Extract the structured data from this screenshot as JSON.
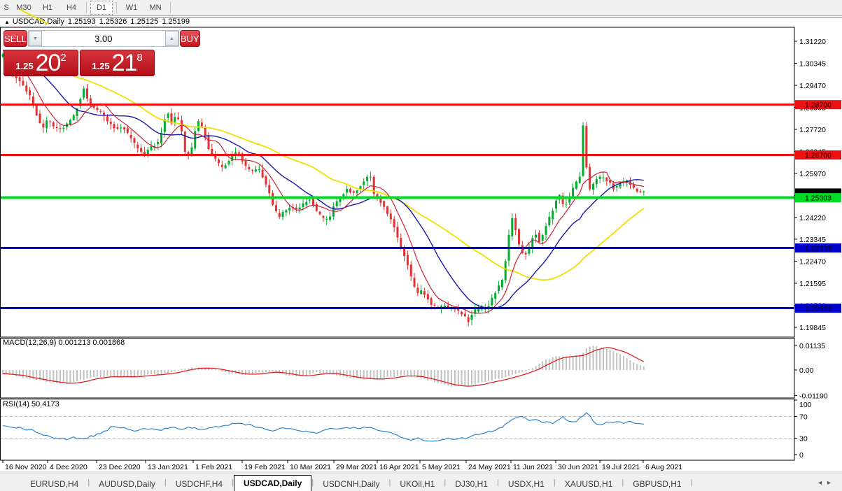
{
  "toolbar": {
    "buttons": [
      {
        "label": "S",
        "active": false
      },
      {
        "label": "M30",
        "active": false
      },
      {
        "label": "H1",
        "active": false
      },
      {
        "label": "H4",
        "active": false
      },
      {
        "label": "D1",
        "active": true
      },
      {
        "label": "W1",
        "active": false
      },
      {
        "label": "MN",
        "active": false
      }
    ]
  },
  "header": {
    "collapse_glyph": "▲",
    "symbol": "USDCAD,Daily",
    "open": "1.25193",
    "high": "1.25326",
    "low": "1.25125",
    "close": "1.25199"
  },
  "trade_panel": {
    "sell_label": "SELL",
    "buy_label": "BUY",
    "volume": "3.00",
    "spinner_down_glyph": "▼",
    "spinner_up_glyph": "▲",
    "sell_price": {
      "prefix": "1.25",
      "big": "20",
      "sup": "2"
    },
    "buy_price": {
      "prefix": "1.25",
      "big": "21",
      "sup": "8"
    }
  },
  "tabs": {
    "items": [
      {
        "label": "EURUSD,H4",
        "active": false
      },
      {
        "label": "AUDUSD,Daily",
        "active": false
      },
      {
        "label": "USDCHF,H4",
        "active": false
      },
      {
        "label": "USDCAD,Daily",
        "active": true
      },
      {
        "label": "USDCNH,Daily",
        "active": false
      },
      {
        "label": "UKOil,H1",
        "active": false
      },
      {
        "label": "DJ30,H1",
        "active": false
      },
      {
        "label": "USDX,H1",
        "active": false
      },
      {
        "label": "XAUUSD,H1",
        "active": false
      },
      {
        "label": "GBPUSD,H1",
        "active": false
      }
    ],
    "scroll_left": "◂",
    "scroll_right": "▸"
  },
  "chart_data": {
    "type": "candlestick",
    "symbol": "USDCAD",
    "timeframe": "Daily",
    "ohlc": {
      "open": 1.25193,
      "high": 1.25326,
      "low": 1.25125,
      "close": 1.25199
    },
    "candle_colors": {
      "up": "#00ad2f",
      "down": "#e43030"
    },
    "y_axis": {
      "top_price": 1.3122,
      "step": 0.00875,
      "ticks": [
        "1.31220",
        "1.30345",
        "1.29470",
        "1.28595",
        "1.27720",
        "1.26845",
        "1.25970",
        "1.25095",
        "1.24220",
        "1.23345",
        "1.22470",
        "1.21595",
        "1.20720",
        "1.19845"
      ]
    },
    "x_axis": {
      "dates": [
        [
          4,
          "16 Nov 2020"
        ],
        [
          68,
          "4 Dec 2020"
        ],
        [
          138,
          "23 Dec 2020"
        ],
        [
          208,
          "13 Jan 2021"
        ],
        [
          276,
          "1 Feb 2021"
        ],
        [
          346,
          "19 Feb 2021"
        ],
        [
          411,
          "10 Mar 2021"
        ],
        [
          477,
          "29 Mar 2021"
        ],
        [
          539,
          "16 Apr 2021"
        ],
        [
          600,
          "5 May 2021"
        ],
        [
          666,
          "24 May 2021"
        ],
        [
          730,
          "11 Jun 2021"
        ],
        [
          794,
          "30 Jun 2021"
        ],
        [
          857,
          "19 Jul 2021"
        ],
        [
          919,
          "6 Aug 2021"
        ]
      ]
    },
    "levels": [
      {
        "price": 1.287,
        "label": "1.28700",
        "color": "#ee1111",
        "thickness": 3,
        "text_color": "#ffffff"
      },
      {
        "price": 1.267,
        "label": "1.26700",
        "color": "#ee1111",
        "thickness": 3,
        "text_color": "#ffffff"
      },
      {
        "price": 1.23003,
        "label": "1.23003",
        "color": "#0000cc",
        "thickness": 3,
        "text_color": "#ffffff"
      },
      {
        "price": 1.20609,
        "label": "1.20609",
        "color": "#0000cc",
        "thickness": 3,
        "text_color": "#ffffff"
      }
    ],
    "green_level": {
      "price": 1.25003,
      "label": "1.25003",
      "color": "#00dd26",
      "thickness": 4,
      "text_color": "#ffffff"
    },
    "current_price": {
      "price": 1.25188,
      "label": "1.25188",
      "bg": "#000000",
      "text_color": "#ffffff"
    },
    "moving_averages": [
      {
        "name": "slow",
        "window": 45,
        "color": "#f0e000",
        "width": 1.8
      },
      {
        "name": "medium",
        "window": 20,
        "color": "#1a1aa6",
        "width": 1.4
      },
      {
        "name": "fast",
        "window": 8,
        "color": "#cc2233",
        "width": 1.2
      }
    ],
    "price_path": [
      [
        3,
        1.306
      ],
      [
        10,
        1.3075
      ],
      [
        18,
        1.302
      ],
      [
        28,
        1.2975
      ],
      [
        38,
        1.2945
      ],
      [
        48,
        1.29
      ],
      [
        57,
        1.283
      ],
      [
        65,
        1.277
      ],
      [
        73,
        1.281
      ],
      [
        82,
        1.278
      ],
      [
        92,
        1.2768
      ],
      [
        102,
        1.2796
      ],
      [
        112,
        1.2836
      ],
      [
        120,
        1.29
      ],
      [
        124,
        1.2936
      ],
      [
        131,
        1.2878
      ],
      [
        140,
        1.2852
      ],
      [
        150,
        1.2836
      ],
      [
        160,
        1.2798
      ],
      [
        170,
        1.277
      ],
      [
        180,
        1.2784
      ],
      [
        190,
        1.2742
      ],
      [
        200,
        1.27
      ],
      [
        210,
        1.2672
      ],
      [
        220,
        1.27
      ],
      [
        230,
        1.2714
      ],
      [
        238,
        1.278
      ],
      [
        243,
        1.2856
      ],
      [
        250,
        1.2798
      ],
      [
        257,
        1.2836
      ],
      [
        264,
        1.277
      ],
      [
        271,
        1.265
      ],
      [
        279,
        1.27
      ],
      [
        287,
        1.281
      ],
      [
        295,
        1.277
      ],
      [
        304,
        1.2686
      ],
      [
        314,
        1.2645
      ],
      [
        324,
        1.2616
      ],
      [
        334,
        1.2658
      ],
      [
        344,
        1.2686
      ],
      [
        354,
        1.263
      ],
      [
        364,
        1.2602
      ],
      [
        374,
        1.2616
      ],
      [
        384,
        1.256
      ],
      [
        394,
        1.2478
      ],
      [
        403,
        1.242
      ],
      [
        412,
        1.245
      ],
      [
        421,
        1.2464
      ],
      [
        430,
        1.245
      ],
      [
        439,
        1.2478
      ],
      [
        448,
        1.2498
      ],
      [
        456,
        1.245
      ],
      [
        465,
        1.242
      ],
      [
        474,
        1.2408
      ],
      [
        483,
        1.2478
      ],
      [
        492,
        1.2505
      ],
      [
        501,
        1.2533
      ],
      [
        510,
        1.252
      ],
      [
        519,
        1.2546
      ],
      [
        528,
        1.257
      ],
      [
        533,
        1.26
      ],
      [
        538,
        1.252
      ],
      [
        546,
        1.2492
      ],
      [
        554,
        1.2464
      ],
      [
        562,
        1.242
      ],
      [
        570,
        1.2366
      ],
      [
        578,
        1.2296
      ],
      [
        585,
        1.2255
      ],
      [
        592,
        1.2186
      ],
      [
        600,
        1.2116
      ],
      [
        608,
        1.213
      ],
      [
        615,
        1.2102
      ],
      [
        622,
        1.2074
      ],
      [
        630,
        1.206
      ],
      [
        638,
        1.2074
      ],
      [
        645,
        1.206
      ],
      [
        652,
        1.2066
      ],
      [
        660,
        1.2046
      ],
      [
        668,
        1.2032
      ],
      [
        674,
        1.201
      ],
      [
        680,
        1.2046
      ],
      [
        688,
        1.206
      ],
      [
        696,
        1.2054
      ],
      [
        703,
        1.2074
      ],
      [
        710,
        1.2116
      ],
      [
        717,
        1.2144
      ],
      [
        724,
        1.2186
      ],
      [
        731,
        1.234
      ],
      [
        737,
        1.242
      ],
      [
        742,
        1.2366
      ],
      [
        748,
        1.2296
      ],
      [
        755,
        1.227
      ],
      [
        762,
        1.231
      ],
      [
        769,
        1.2366
      ],
      [
        776,
        1.2324
      ],
      [
        783,
        1.238
      ],
      [
        790,
        1.2422
      ],
      [
        797,
        1.247
      ],
      [
        803,
        1.252
      ],
      [
        809,
        1.2478
      ],
      [
        816,
        1.2478
      ],
      [
        822,
        1.2534
      ],
      [
        828,
        1.256
      ],
      [
        833,
        1.2585
      ],
      [
        838,
        1.2795
      ],
      [
        842,
        1.264
      ],
      [
        847,
        1.253
      ],
      [
        853,
        1.256
      ],
      [
        859,
        1.2576
      ],
      [
        865,
        1.2584
      ],
      [
        871,
        1.2568
      ],
      [
        877,
        1.2556
      ],
      [
        883,
        1.2528
      ],
      [
        889,
        1.2556
      ],
      [
        895,
        1.2568
      ],
      [
        901,
        1.2568
      ],
      [
        907,
        1.2548
      ],
      [
        913,
        1.2528
      ],
      [
        919,
        1.252
      ],
      [
        924,
        1.252
      ]
    ],
    "macd_panel": {
      "label": "MACD(12,26,9) 0.001213 0.001868",
      "main_value": 0.001213,
      "signal_value": 0.001868,
      "ticks": [
        {
          "v": 0.01135,
          "label": "0.01135"
        },
        {
          "v": 0,
          "label": "0.00"
        },
        {
          "v": -0.0119,
          "label": "-0.01190"
        }
      ],
      "histogram_color": "#c2c2c2",
      "signal_color": "#e02020",
      "anchors": [
        [
          4,
          -0.0015
        ],
        [
          40,
          -0.004
        ],
        [
          80,
          -0.006
        ],
        [
          100,
          -0.0062
        ],
        [
          130,
          -0.0035
        ],
        [
          155,
          -0.003
        ],
        [
          175,
          -0.0035
        ],
        [
          205,
          -0.0025
        ],
        [
          235,
          -0.0018
        ],
        [
          262,
          0.0006
        ],
        [
          285,
          0.0012
        ],
        [
          305,
          0.0002
        ],
        [
          330,
          -0.0018
        ],
        [
          355,
          -0.0022
        ],
        [
          375,
          -0.001
        ],
        [
          392,
          -0.0008
        ],
        [
          412,
          -0.0026
        ],
        [
          432,
          -0.0028
        ],
        [
          452,
          -0.0012
        ],
        [
          472,
          -0.0016
        ],
        [
          492,
          -0.0034
        ],
        [
          515,
          -0.004
        ],
        [
          540,
          -0.0045
        ],
        [
          560,
          -0.003
        ],
        [
          580,
          -0.0024
        ],
        [
          600,
          -0.0036
        ],
        [
          620,
          -0.0055
        ],
        [
          640,
          -0.0074
        ],
        [
          660,
          -0.0078
        ],
        [
          680,
          -0.0064
        ],
        [
          700,
          -0.005
        ],
        [
          720,
          -0.0034
        ],
        [
          740,
          -0.0016
        ],
        [
          758,
          0.0004
        ],
        [
          775,
          0.004
        ],
        [
          790,
          0.006
        ],
        [
          800,
          0.0064
        ],
        [
          812,
          0.006
        ],
        [
          822,
          0.0064
        ],
        [
          832,
          0.008
        ],
        [
          840,
          0.0105
        ],
        [
          848,
          0.0114
        ],
        [
          856,
          0.01
        ],
        [
          866,
          0.0096
        ],
        [
          876,
          0.009
        ],
        [
          886,
          0.0074
        ],
        [
          896,
          0.0054
        ],
        [
          906,
          0.0034
        ],
        [
          916,
          0.002
        ],
        [
          924,
          0.0012
        ]
      ]
    },
    "rsi_panel": {
      "label": "RSI(14) 50.4173",
      "value": 50.4173,
      "ticks": [
        {
          "v": 100,
          "label": "100"
        },
        {
          "v": 70,
          "label": "70"
        },
        {
          "v": 30,
          "label": "30"
        },
        {
          "v": 0,
          "label": "0"
        }
      ],
      "dashed_levels": [
        70,
        30
      ],
      "line_color": "#2e86d0",
      "anchors": [
        [
          4,
          52
        ],
        [
          20,
          50
        ],
        [
          40,
          46
        ],
        [
          60,
          38
        ],
        [
          80,
          30
        ],
        [
          95,
          27
        ],
        [
          105,
          31
        ],
        [
          118,
          29
        ],
        [
          132,
          34
        ],
        [
          148,
          42
        ],
        [
          162,
          52
        ],
        [
          178,
          49
        ],
        [
          192,
          45
        ],
        [
          212,
          47
        ],
        [
          228,
          44
        ],
        [
          244,
          52
        ],
        [
          258,
          47
        ],
        [
          272,
          50
        ],
        [
          288,
          46
        ],
        [
          302,
          49
        ],
        [
          318,
          53
        ],
        [
          332,
          56
        ],
        [
          348,
          57
        ],
        [
          362,
          52
        ],
        [
          378,
          47
        ],
        [
          392,
          44
        ],
        [
          408,
          49
        ],
        [
          424,
          45
        ],
        [
          438,
          42
        ],
        [
          452,
          38
        ],
        [
          468,
          48
        ],
        [
          482,
          45
        ],
        [
          498,
          50
        ],
        [
          512,
          47
        ],
        [
          528,
          52
        ],
        [
          544,
          43
        ],
        [
          558,
          40
        ],
        [
          572,
          34
        ],
        [
          585,
          28
        ],
        [
          598,
          31
        ],
        [
          608,
          26
        ],
        [
          618,
          24
        ],
        [
          628,
          27
        ],
        [
          638,
          30
        ],
        [
          648,
          28
        ],
        [
          658,
          32
        ],
        [
          668,
          29
        ],
        [
          678,
          35
        ],
        [
          688,
          38
        ],
        [
          698,
          42
        ],
        [
          708,
          45
        ],
        [
          718,
          52
        ],
        [
          728,
          60
        ],
        [
          736,
          68
        ],
        [
          744,
          73
        ],
        [
          752,
          66
        ],
        [
          760,
          62
        ],
        [
          768,
          65
        ],
        [
          775,
          60
        ],
        [
          782,
          63
        ],
        [
          790,
          58
        ],
        [
          797,
          62
        ],
        [
          804,
          68
        ],
        [
          811,
          64
        ],
        [
          818,
          60
        ],
        [
          825,
          63
        ],
        [
          832,
          70
        ],
        [
          838,
          77
        ],
        [
          844,
          69
        ],
        [
          850,
          58
        ],
        [
          856,
          54
        ],
        [
          863,
          57
        ],
        [
          870,
          60
        ],
        [
          877,
          58
        ],
        [
          884,
          61
        ],
        [
          891,
          59
        ],
        [
          898,
          62
        ],
        [
          904,
          58
        ],
        [
          911,
          57
        ],
        [
          918,
          55
        ],
        [
          924,
          55
        ]
      ]
    }
  }
}
